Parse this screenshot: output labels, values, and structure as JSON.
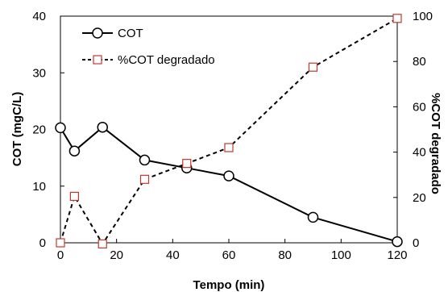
{
  "chart_data": {
    "type": "line",
    "xlabel": "Tempo (min)",
    "ylabel": "COT (mgC/L)",
    "y2label": "%COT degradado",
    "xlim": [
      0,
      120
    ],
    "ylim": [
      0,
      40
    ],
    "y2lim": [
      0,
      100
    ],
    "xticks": [
      0,
      20,
      40,
      60,
      80,
      100,
      120
    ],
    "yticks": [
      0,
      10,
      20,
      30,
      40
    ],
    "y2ticks": [
      0,
      20,
      40,
      60,
      80,
      100
    ],
    "legend_position": "top-left",
    "series": [
      {
        "name": "COT",
        "axis": "left",
        "marker": "circle",
        "line_style": "solid",
        "color": "#000000",
        "x": [
          0,
          5,
          15,
          30,
          45,
          60,
          90,
          120
        ],
        "y": [
          20.3,
          16.2,
          20.4,
          14.6,
          13.2,
          11.8,
          4.5,
          0.2
        ]
      },
      {
        "name": "%COT degradado",
        "axis": "right",
        "marker": "square",
        "line_style": "dashed",
        "color": "#000000",
        "marker_color": "#c0392b",
        "x": [
          0,
          5,
          15,
          30,
          45,
          60,
          90,
          120
        ],
        "y": [
          0,
          20.5,
          -0.5,
          28,
          35,
          42,
          77.5,
          99
        ]
      }
    ]
  }
}
